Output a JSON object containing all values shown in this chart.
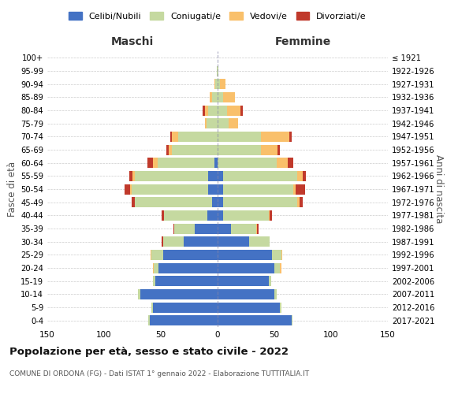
{
  "age_groups": [
    "0-4",
    "5-9",
    "10-14",
    "15-19",
    "20-24",
    "25-29",
    "30-34",
    "35-39",
    "40-44",
    "45-49",
    "50-54",
    "55-59",
    "60-64",
    "65-69",
    "70-74",
    "75-79",
    "80-84",
    "85-89",
    "90-94",
    "95-99",
    "100+"
  ],
  "birth_years": [
    "2017-2021",
    "2012-2016",
    "2007-2011",
    "2002-2006",
    "1997-2001",
    "1992-1996",
    "1987-1991",
    "1982-1986",
    "1977-1981",
    "1972-1976",
    "1967-1971",
    "1962-1966",
    "1957-1961",
    "1952-1956",
    "1947-1951",
    "1942-1946",
    "1937-1941",
    "1932-1936",
    "1927-1931",
    "1922-1926",
    "≤ 1921"
  ],
  "maschi": {
    "celibi": [
      60,
      57,
      68,
      55,
      52,
      48,
      30,
      20,
      9,
      5,
      8,
      8,
      3,
      0,
      0,
      0,
      0,
      0,
      0,
      0,
      0
    ],
    "coniugati": [
      1,
      1,
      2,
      2,
      4,
      10,
      18,
      18,
      38,
      68,
      68,
      65,
      50,
      40,
      35,
      10,
      8,
      5,
      2,
      1,
      0
    ],
    "vedovi": [
      0,
      0,
      0,
      0,
      1,
      1,
      0,
      0,
      0,
      0,
      1,
      2,
      4,
      3,
      5,
      1,
      3,
      2,
      1,
      0,
      0
    ],
    "divorziati": [
      0,
      0,
      0,
      0,
      0,
      0,
      1,
      1,
      2,
      3,
      5,
      3,
      5,
      2,
      2,
      0,
      2,
      0,
      0,
      0,
      0
    ]
  },
  "femmine": {
    "nubili": [
      65,
      55,
      50,
      45,
      50,
      48,
      28,
      12,
      5,
      5,
      5,
      5,
      0,
      0,
      0,
      0,
      0,
      0,
      0,
      0,
      0
    ],
    "coniugate": [
      1,
      1,
      2,
      2,
      5,
      8,
      18,
      22,
      40,
      65,
      62,
      65,
      52,
      38,
      38,
      10,
      8,
      5,
      2,
      1,
      0
    ],
    "vedove": [
      0,
      0,
      0,
      0,
      1,
      1,
      0,
      1,
      1,
      2,
      2,
      5,
      10,
      15,
      25,
      8,
      12,
      10,
      5,
      0,
      0
    ],
    "divorziate": [
      0,
      0,
      0,
      0,
      0,
      0,
      0,
      1,
      2,
      3,
      8,
      3,
      5,
      2,
      2,
      0,
      2,
      0,
      0,
      0,
      0
    ]
  },
  "colors": {
    "celibi_nubili": "#4472C4",
    "coniugati": "#C5D9A0",
    "vedovi": "#F9C06B",
    "divorziati": "#C0392B"
  },
  "title": "Popolazione per età, sesso e stato civile - 2022",
  "subtitle": "COMUNE DI ORDONA (FG) - Dati ISTAT 1° gennaio 2022 - Elaborazione TUTTITALIA.IT",
  "xlabel_left": "Maschi",
  "xlabel_right": "Femmine",
  "ylabel_left": "Fasce di età",
  "ylabel_right": "Anni di nascita",
  "xlim": 150,
  "legend_labels": [
    "Celibi/Nubili",
    "Coniugati/e",
    "Vedovi/e",
    "Divorziati/e"
  ],
  "background_color": "#ffffff",
  "grid_color": "#cccccc"
}
